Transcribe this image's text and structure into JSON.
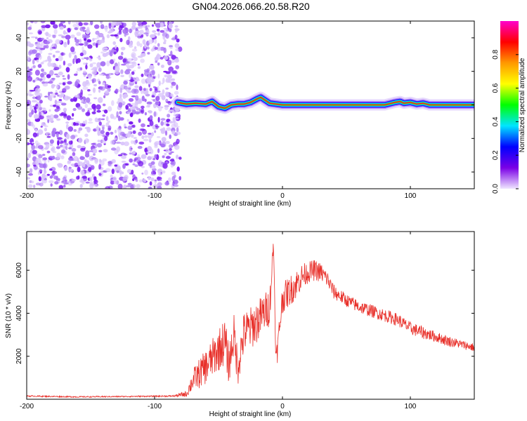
{
  "figure": {
    "title": "GN04.2026.066.20.58.R20"
  },
  "chart_data": [
    {
      "type": "heatmap",
      "xlabel": "Height of straight line (km)",
      "ylabel": "Frequency (Hz)",
      "xlim": [
        -200,
        150
      ],
      "ylim": [
        -50,
        50
      ],
      "xticks": [
        "-200",
        "-100",
        "0",
        "100"
      ],
      "yticks": [
        "-40",
        "-20",
        "0",
        "20",
        "40"
      ],
      "noise_region_x": [
        -200,
        -80
      ],
      "signal_track": {
        "x": [
          -82,
          -75,
          -68,
          -60,
          -55,
          -50,
          -45,
          -40,
          -35,
          -30,
          -25,
          -20,
          -17,
          -14,
          -10,
          -5,
          0,
          10,
          20,
          40,
          60,
          80,
          88,
          92,
          95,
          100,
          105,
          110,
          115,
          130,
          150
        ],
        "y": [
          1.5,
          0.5,
          1.0,
          0.5,
          2.0,
          -1.0,
          -2.0,
          0.0,
          0.5,
          0.5,
          1.5,
          3.5,
          4.5,
          3.0,
          1.0,
          0.5,
          0.0,
          0.0,
          0.0,
          0.0,
          0.0,
          0.0,
          1.5,
          2.0,
          1.0,
          1.5,
          0.5,
          1.0,
          0.0,
          0.0,
          0.0
        ]
      },
      "colorbar": {
        "label": "Normalized spectral amplitude",
        "range": [
          0,
          1
        ],
        "ticks": [
          "0.0",
          "0.2",
          "0.4",
          "0.6",
          "0.8"
        ],
        "stops": [
          "#f0e6ff",
          "#7a00e6",
          "#0000ff",
          "#00e5ff",
          "#00ff00",
          "#ffff00",
          "#ff9900",
          "#ff0000",
          "#ff00cc"
        ]
      },
      "grid": false
    },
    {
      "type": "line",
      "xlabel": "Height of straight line (km)",
      "ylabel": "SNR (10 * v/v)",
      "xlim": [
        -200,
        150
      ],
      "ylim": [
        0,
        7800
      ],
      "xticks": [
        "-200",
        "-100",
        "0",
        "100"
      ],
      "yticks": [
        "2000",
        "4000",
        "6000"
      ],
      "series": [
        {
          "color": "#e8302a",
          "x": [
            -200,
            -180,
            -160,
            -140,
            -120,
            -100,
            -85,
            -75,
            -70,
            -65,
            -60,
            -55,
            -50,
            -45,
            -42,
            -38,
            -35,
            -30,
            -25,
            -20,
            -15,
            -10,
            -7,
            -5,
            0,
            5,
            10,
            15,
            20,
            25,
            30,
            35,
            40,
            50,
            60,
            70,
            80,
            90,
            95,
            100,
            105,
            110,
            120,
            130,
            140,
            150
          ],
          "values": [
            150,
            130,
            110,
            120,
            130,
            140,
            150,
            250,
            900,
            1200,
            1500,
            1900,
            2300,
            2700,
            1600,
            3000,
            1500,
            3100,
            3300,
            3600,
            4000,
            4300,
            7300,
            1700,
            4700,
            5000,
            5300,
            5700,
            5900,
            6000,
            5900,
            5600,
            5000,
            4600,
            4300,
            4100,
            3900,
            3700,
            3500,
            3300,
            3200,
            3100,
            2900,
            2700,
            2550,
            2400
          ],
          "noise_amplitude": [
            30,
            30,
            30,
            30,
            30,
            30,
            40,
            150,
            500,
            700,
            800,
            900,
            1000,
            1100,
            900,
            1000,
            900,
            1000,
            1000,
            1000,
            900,
            900,
            400,
            600,
            700,
            700,
            700,
            600,
            500,
            500,
            450,
            400,
            350,
            300,
            300,
            300,
            300,
            300,
            300,
            300,
            300,
            300,
            250,
            250,
            200,
            200
          ]
        }
      ],
      "grid": false
    }
  ]
}
